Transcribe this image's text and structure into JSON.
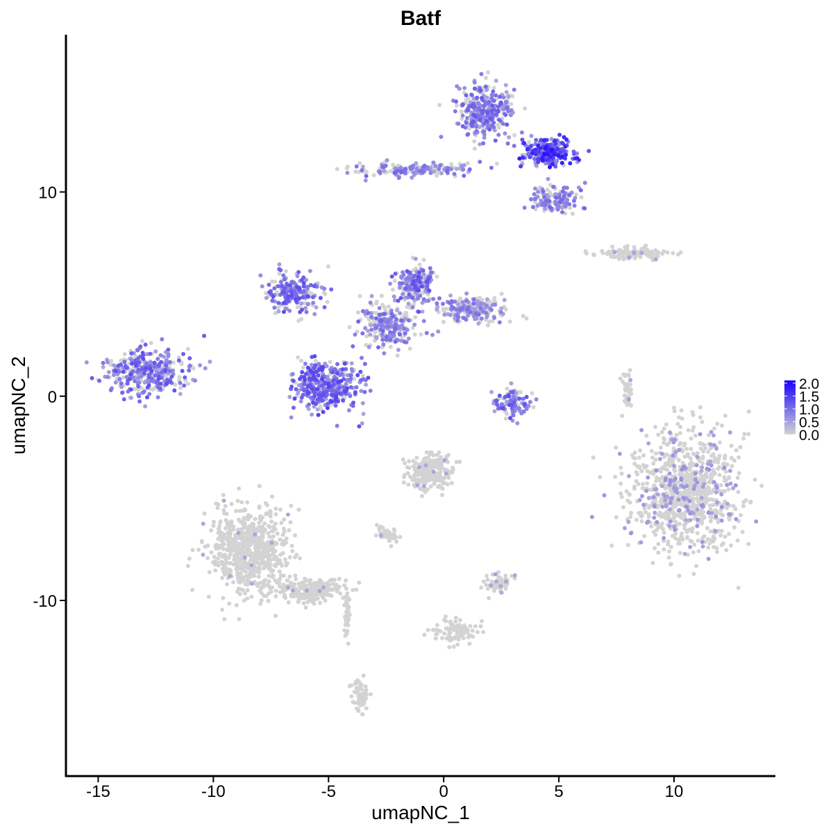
{
  "chart_data": {
    "type": "scatter",
    "title": "Batf",
    "xlabel": "umapNC_1",
    "ylabel": "umapNC_2",
    "xlim": [
      -16.4,
      14.4
    ],
    "ylim": [
      -18.6,
      17.7
    ],
    "xticks": [
      -15,
      -10,
      -5,
      0,
      5,
      10
    ],
    "yticks": [
      -10,
      0,
      10
    ],
    "xtick_labels": [
      "-15",
      "-10",
      "-5",
      "0",
      "5",
      "10"
    ],
    "ytick_labels": [
      "-10",
      "0",
      "10"
    ],
    "color_low": "#D3D3D3",
    "color_high": "#1A00FF",
    "legend": {
      "position": "right",
      "labels": [
        "2.0",
        "1.5",
        "1.0",
        "0.5",
        "0.0"
      ],
      "values": [
        2.0,
        1.5,
        1.0,
        0.5,
        0.0
      ],
      "range": [
        0,
        2.0
      ]
    },
    "clusters": [
      {
        "cx": -12.9,
        "cy": 1.2,
        "rx": 1.7,
        "ry": 1.0,
        "n": 350,
        "expr": 0.8
      },
      {
        "cx": -6.6,
        "cy": 5.1,
        "rx": 1.1,
        "ry": 0.8,
        "n": 200,
        "expr": 0.8
      },
      {
        "cx": -5.1,
        "cy": 0.5,
        "rx": 1.4,
        "ry": 1.1,
        "n": 380,
        "expr": 0.9
      },
      {
        "cx": -2.4,
        "cy": 3.4,
        "rx": 1.2,
        "ry": 1.0,
        "n": 250,
        "expr": 0.6
      },
      {
        "cx": -1.2,
        "cy": 5.5,
        "rx": 0.8,
        "ry": 0.9,
        "n": 180,
        "expr": 0.8
      },
      {
        "cx": 1.2,
        "cy": 4.3,
        "rx": 1.4,
        "ry": 0.6,
        "n": 220,
        "expr": 0.5
      },
      {
        "cx": 1.8,
        "cy": 14.0,
        "rx": 1.1,
        "ry": 1.2,
        "n": 320,
        "expr": 0.7
      },
      {
        "cx": 4.5,
        "cy": 12.0,
        "rx": 1.0,
        "ry": 0.6,
        "n": 220,
        "expr": 1.3
      },
      {
        "cx": -1.2,
        "cy": 11.1,
        "rx": 2.5,
        "ry": 0.3,
        "n": 160,
        "expr": 0.6
      },
      {
        "cx": 4.8,
        "cy": 9.6,
        "rx": 1.0,
        "ry": 0.6,
        "n": 150,
        "expr": 0.6
      },
      {
        "cx": 3.0,
        "cy": -0.3,
        "rx": 0.8,
        "ry": 0.6,
        "n": 110,
        "expr": 0.8
      },
      {
        "cx": 10.4,
        "cy": -4.7,
        "rx": 2.2,
        "ry": 2.7,
        "n": 900,
        "expr": 0.2
      },
      {
        "cx": -8.4,
        "cy": -7.5,
        "rx": 1.5,
        "ry": 1.9,
        "n": 700,
        "expr": 0.02
      },
      {
        "cx": -5.7,
        "cy": -9.5,
        "rx": 1.4,
        "ry": 0.5,
        "n": 220,
        "expr": 0.03
      },
      {
        "cx": -0.6,
        "cy": -3.7,
        "rx": 0.9,
        "ry": 0.8,
        "n": 230,
        "expr": 0.03
      },
      {
        "cx": 8.2,
        "cy": 7.0,
        "rx": 1.5,
        "ry": 0.3,
        "n": 110,
        "expr": 0.05
      },
      {
        "cx": 2.4,
        "cy": -9.2,
        "rx": 0.6,
        "ry": 0.4,
        "n": 70,
        "expr": 0.1
      },
      {
        "cx": 0.6,
        "cy": -11.5,
        "rx": 0.9,
        "ry": 0.6,
        "n": 90,
        "expr": 0.02
      },
      {
        "cx": -3.6,
        "cy": -14.6,
        "rx": 0.3,
        "ry": 0.8,
        "n": 60,
        "expr": 0.02
      },
      {
        "cx": -2.4,
        "cy": -6.8,
        "rx": 0.4,
        "ry": 0.3,
        "n": 40,
        "expr": 0.02
      },
      {
        "cx": 8.0,
        "cy": 0.4,
        "rx": 0.2,
        "ry": 0.8,
        "n": 40,
        "expr": 0.1
      },
      {
        "cx": -4.2,
        "cy": -10.5,
        "rx": 0.1,
        "ry": 1.5,
        "n": 40,
        "expr": 0.02
      }
    ]
  }
}
